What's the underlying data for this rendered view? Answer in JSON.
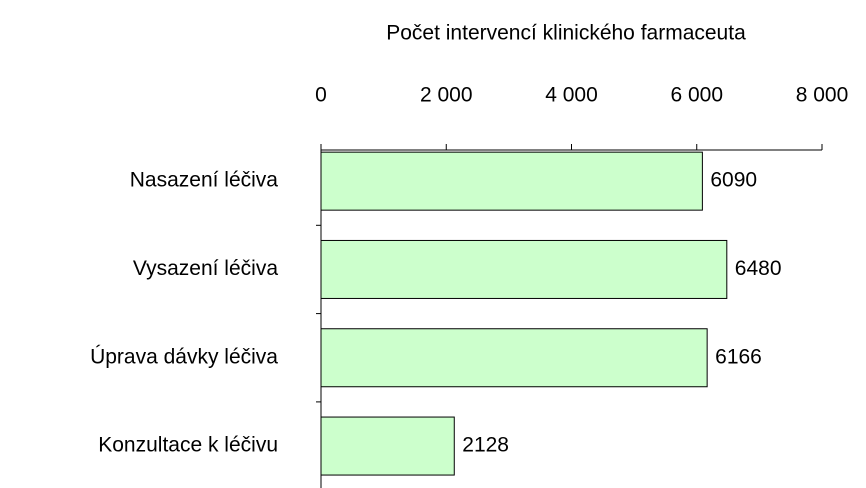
{
  "chart_data": {
    "type": "bar",
    "orientation": "horizontal",
    "title": "Počet intervencí klinického farmaceuta",
    "categories": [
      "Nasazení léčiva",
      "Vysazení léčiva",
      "Úprava dávky léčiva",
      "Konzultace k léčivu"
    ],
    "values": [
      6090,
      6480,
      6166,
      2128
    ],
    "color": "#ccffcc",
    "xlim": [
      0,
      8000
    ],
    "xticks": [
      0,
      {
        "value": 2000,
        "label": "2 000"
      },
      {
        "value": 4000,
        "label": "4 000"
      },
      {
        "value": 6000,
        "label": "6 000"
      },
      {
        "value": 8000,
        "label": "8 000"
      }
    ]
  }
}
